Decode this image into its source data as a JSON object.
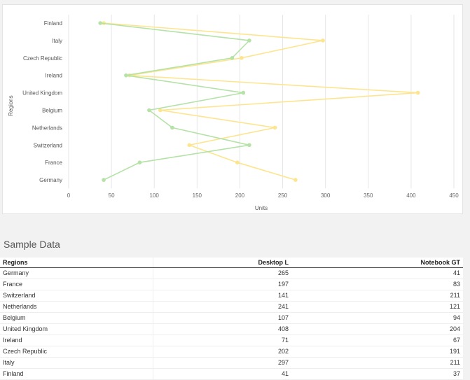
{
  "chart_data": {
    "type": "line",
    "orientation": "horizontal",
    "categories": [
      "Germany",
      "France",
      "Switzerland",
      "Netherlands",
      "Belgium",
      "United Kingdom",
      "Ireland",
      "Czech Republic",
      "Italy",
      "Finland"
    ],
    "series": [
      {
        "name": "Desktop L",
        "color": "#fde58f",
        "values": [
          265,
          197,
          141,
          241,
          107,
          408,
          71,
          202,
          297,
          41
        ]
      },
      {
        "name": "Notebook GT",
        "color": "#b5e2a7",
        "values": [
          41,
          83,
          211,
          121,
          94,
          204,
          67,
          191,
          211,
          37
        ]
      }
    ],
    "xlabel": "Units",
    "ylabel": "Regions",
    "xlim": [
      0,
      450
    ],
    "xticks": [
      "0",
      "50",
      "100",
      "150",
      "200",
      "250",
      "300",
      "350",
      "400",
      "450"
    ],
    "grid": true,
    "legend": "none"
  },
  "table": {
    "title": "Sample Data",
    "headers": [
      "Regions",
      "Desktop L",
      "Notebook GT"
    ],
    "rows": [
      [
        "Germany",
        "265",
        "41"
      ],
      [
        "France",
        "197",
        "83"
      ],
      [
        "Switzerland",
        "141",
        "211"
      ],
      [
        "Netherlands",
        "241",
        "121"
      ],
      [
        "Belgium",
        "107",
        "94"
      ],
      [
        "United Kingdom",
        "408",
        "204"
      ],
      [
        "Ireland",
        "71",
        "67"
      ],
      [
        "Czech Republic",
        "202",
        "191"
      ],
      [
        "Italy",
        "297",
        "211"
      ],
      [
        "Finland",
        "41",
        "37"
      ]
    ]
  }
}
